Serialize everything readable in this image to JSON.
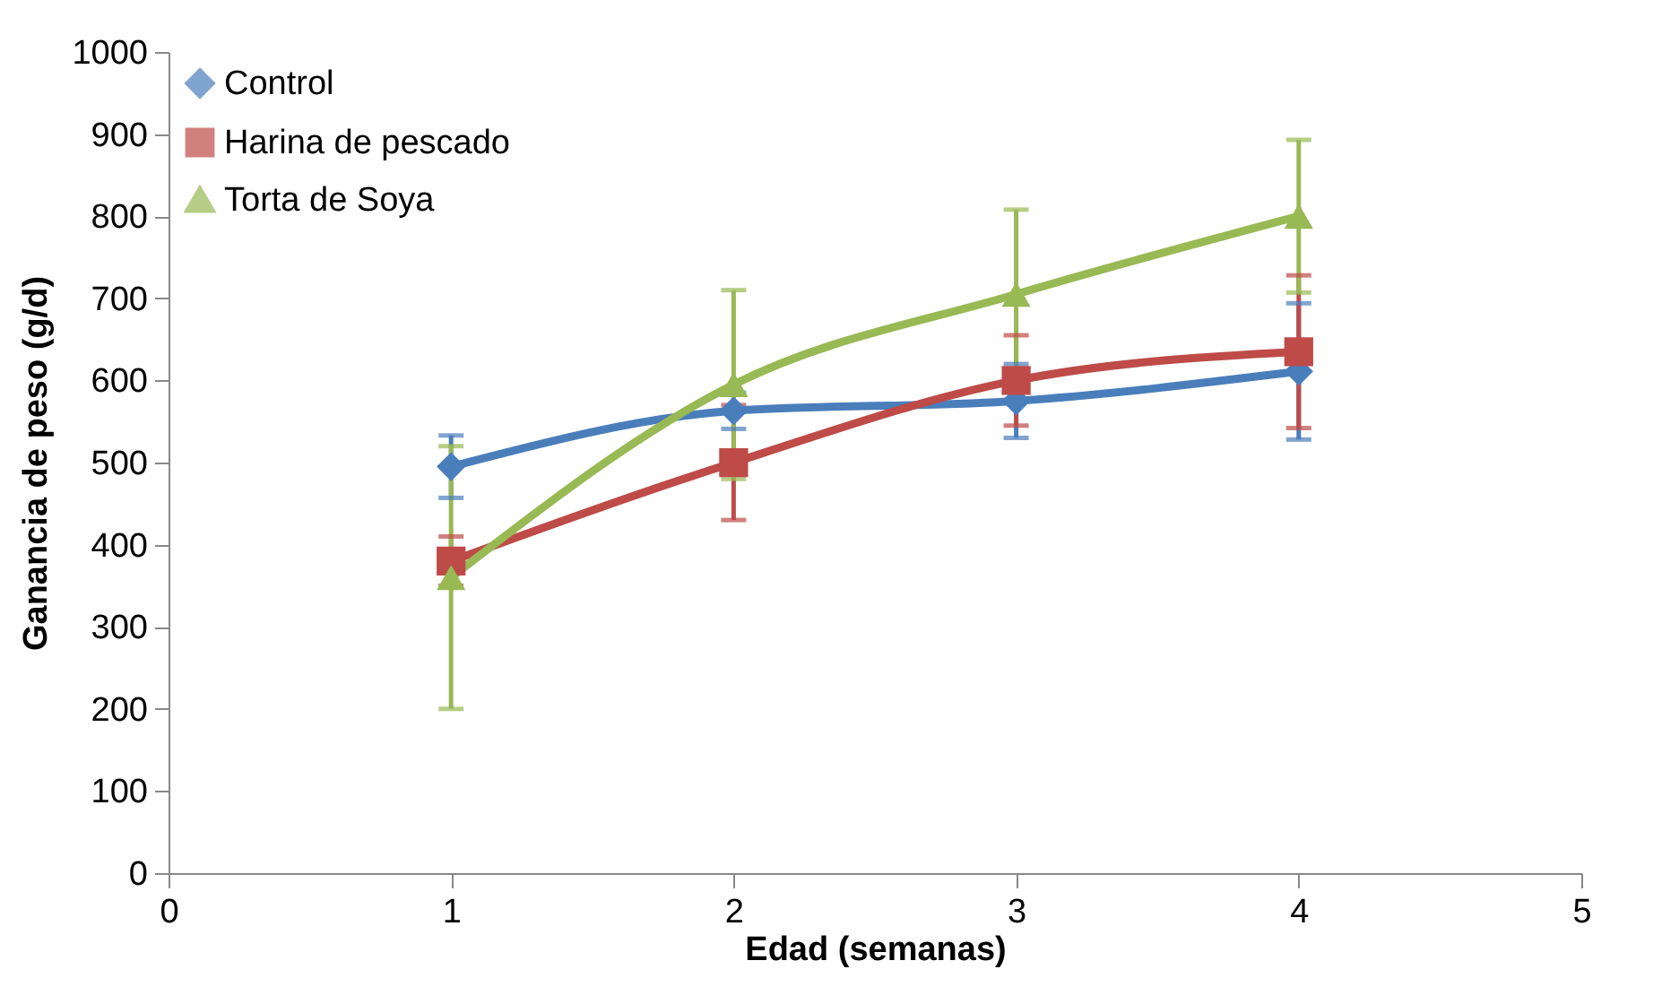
{
  "chart_data": {
    "type": "line",
    "xlabel": "Edad (semanas)",
    "ylabel": "Ganancia de peso (g/d)",
    "x": [
      1,
      2,
      3,
      4
    ],
    "series": [
      {
        "name": "Control",
        "color": "#4a7ebb",
        "marker": "diamond",
        "values": [
          495,
          563,
          575,
          611
        ],
        "errors": [
          38,
          22,
          45,
          83
        ]
      },
      {
        "name": "Harina de pescado",
        "color": "#be4b48",
        "marker": "square",
        "values": [
          380,
          500,
          600,
          635
        ],
        "errors": [
          30,
          70,
          55,
          93
        ]
      },
      {
        "name": "Torta de Soya",
        "color": "#98b954",
        "marker": "triangle",
        "values": [
          360,
          595,
          705,
          800
        ],
        "errors": [
          160,
          115,
          103,
          93
        ]
      }
    ],
    "xlim": [
      0,
      5
    ],
    "xticks": [
      0,
      1,
      2,
      3,
      4,
      5
    ],
    "ylim": [
      0,
      1000
    ],
    "yticks": [
      0,
      100,
      200,
      300,
      400,
      500,
      600,
      700,
      800,
      900,
      1000
    ],
    "grid": false,
    "legend": "top left",
    "line_style": "solid"
  }
}
